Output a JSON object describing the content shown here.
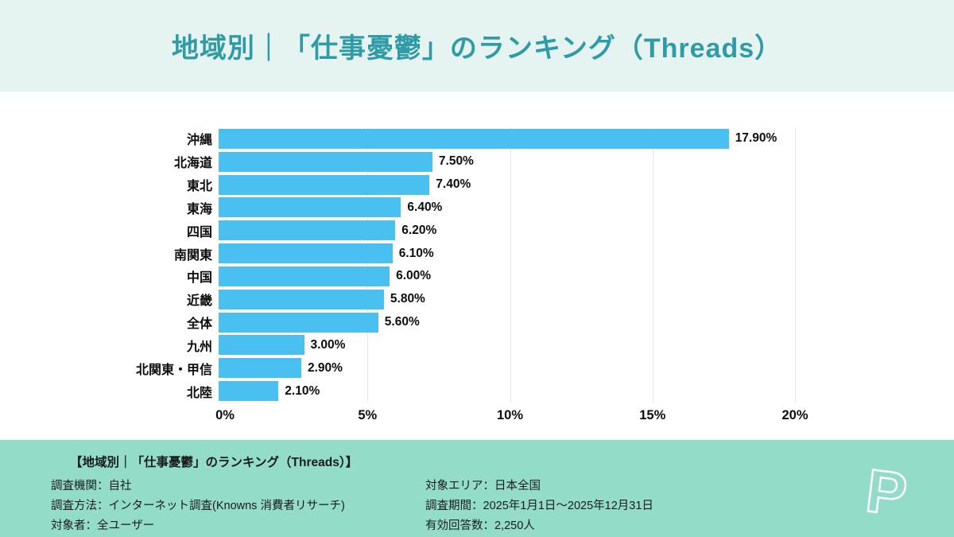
{
  "header": {
    "title": "地域別｜「仕事憂鬱」のランキング（Threads）"
  },
  "chart_data": {
    "type": "bar",
    "orientation": "horizontal",
    "title": "地域別｜「仕事憂鬱」のランキング（Threads）",
    "categories": [
      "沖縄",
      "北海道",
      "東北",
      "東海",
      "四国",
      "南関東",
      "中国",
      "近畿",
      "全体",
      "九州",
      "北関東・甲信",
      "北陸"
    ],
    "values": [
      17.9,
      7.5,
      7.4,
      6.4,
      6.2,
      6.1,
      6.0,
      5.8,
      5.6,
      3.0,
      2.9,
      2.1
    ],
    "value_labels": [
      "17.90%",
      "7.50%",
      "7.40%",
      "6.40%",
      "6.20%",
      "6.10%",
      "6.00%",
      "5.80%",
      "5.60%",
      "3.00%",
      "2.90%",
      "2.10%"
    ],
    "x_ticks": [
      "0%",
      "5%",
      "10%",
      "15%",
      "20%"
    ],
    "x_tick_values": [
      0,
      5,
      10,
      15,
      20
    ],
    "xlim": [
      0,
      20
    ],
    "grid": "vertical-light",
    "legend": "none",
    "bar_color": "#49c0f0"
  },
  "footer": {
    "heading": "【地域別｜「仕事憂鬱」のランキング（Threads）】",
    "left_lines": [
      "調査機関：自社",
      "調査方法：インターネット調査(Knowns 消費者リサーチ)",
      "対象者：全ユーザー"
    ],
    "right_lines": [
      "対象エリア：日本全国",
      "調査期間：2025年1月1日～2025年12月31日",
      "有効回答数：2,250人"
    ],
    "logo_letter": "P"
  },
  "colors": {
    "header_bg": "#e5f4f1",
    "title_text": "#2f9ba6",
    "bar": "#49c0f0",
    "footer_bg": "#92dcc8",
    "gridline": "#e7e7e7",
    "chart_text": "#0d0d0d"
  }
}
